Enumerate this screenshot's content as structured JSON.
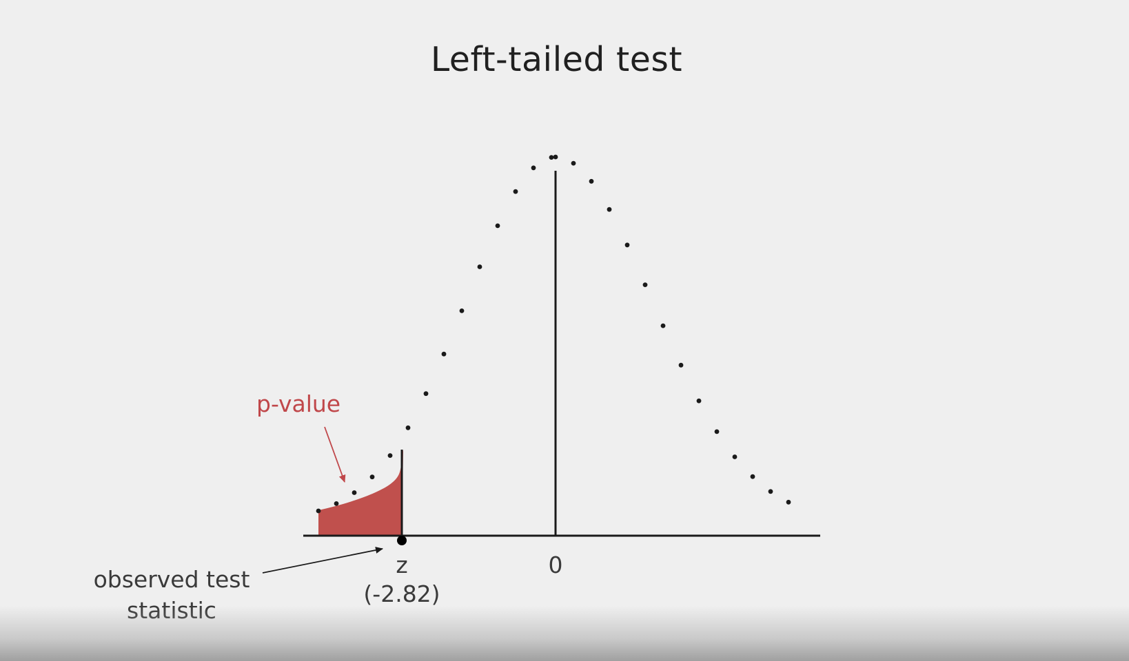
{
  "diagram": {
    "title": "Left-tailed test",
    "p_value_label": "p-value",
    "z_label": "z",
    "z_value_label": "(-2.82)",
    "zero_label": "0",
    "observed_label_line1": "observed test",
    "observed_label_line2": "statistic"
  },
  "colors": {
    "background": "#efefef",
    "curve": "#1a1a1a",
    "shaded_area": "#c0504d",
    "p_value_text": "#c0474a"
  }
}
